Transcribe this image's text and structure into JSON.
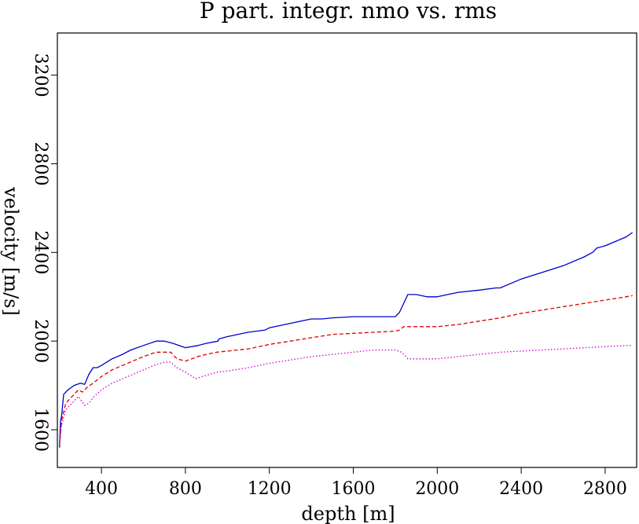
{
  "chart_data": {
    "type": "line",
    "title": "P part. integr. nmo vs. rms",
    "xlabel": "depth [m]",
    "ylabel": "velocity [m/s]",
    "xlim": [
      190,
      2950
    ],
    "ylim": [
      1430,
      3390
    ],
    "xticks": [
      400,
      800,
      1200,
      1600,
      2000,
      2400,
      2800
    ],
    "xtick_labels": [
      "400",
      "800",
      "1200",
      "1600",
      "2000",
      "2400",
      "2800"
    ],
    "yticks": [
      1600,
      2000,
      2400,
      2800,
      3200
    ],
    "ytick_labels": [
      "1600",
      "2000",
      "2400",
      "2800",
      "3200"
    ],
    "grid": false,
    "legend": "none",
    "series": [
      {
        "color": "#0000cc",
        "style": "solid",
        "x": [
          200,
          205,
          210,
          220,
          240,
          270,
          300,
          320,
          340,
          360,
          380,
          400,
          450,
          500,
          540,
          600,
          660,
          700,
          740,
          800,
          860,
          900,
          955,
          960,
          1000,
          1100,
          1180,
          1200,
          1300,
          1350,
          1400,
          1450,
          1500,
          1600,
          1700,
          1800,
          1820,
          1860,
          1900,
          1950,
          2000,
          2050,
          2100,
          2200,
          2280,
          2300,
          2400,
          2500,
          2600,
          2700,
          2740,
          2760,
          2800,
          2900,
          2930
        ],
        "y": [
          1520,
          1640,
          1660,
          1760,
          1780,
          1800,
          1810,
          1805,
          1850,
          1880,
          1880,
          1890,
          1920,
          1940,
          1960,
          1980,
          2000,
          2000,
          1990,
          1970,
          1980,
          1990,
          2000,
          2010,
          2020,
          2040,
          2050,
          2060,
          2080,
          2090,
          2100,
          2100,
          2105,
          2110,
          2110,
          2110,
          2130,
          2210,
          2210,
          2200,
          2200,
          2210,
          2220,
          2230,
          2240,
          2240,
          2280,
          2310,
          2340,
          2380,
          2400,
          2420,
          2430,
          2470,
          2490
        ]
      },
      {
        "color": "#dd0000",
        "style": "dashed",
        "x": [
          200,
          210,
          230,
          260,
          290,
          310,
          330,
          360,
          400,
          450,
          500,
          550,
          600,
          660,
          700,
          730,
          760,
          800,
          860,
          900,
          950,
          1000,
          1100,
          1200,
          1300,
          1400,
          1500,
          1600,
          1700,
          1800,
          1820,
          1840,
          1900,
          2000,
          2100,
          2200,
          2300,
          2400,
          2500,
          2600,
          2700,
          2800,
          2900,
          2930
        ],
        "y": [
          1530,
          1640,
          1720,
          1750,
          1780,
          1770,
          1790,
          1810,
          1840,
          1870,
          1890,
          1910,
          1930,
          1950,
          1950,
          1950,
          1920,
          1910,
          1930,
          1940,
          1950,
          1955,
          1965,
          1985,
          2000,
          2015,
          2030,
          2035,
          2040,
          2045,
          2050,
          2065,
          2065,
          2065,
          2075,
          2090,
          2105,
          2125,
          2140,
          2155,
          2170,
          2185,
          2200,
          2205
        ]
      },
      {
        "color": "#cc00cc",
        "style": "dotted",
        "x": [
          200,
          210,
          230,
          260,
          290,
          320,
          340,
          360,
          400,
          450,
          500,
          550,
          600,
          650,
          700,
          730,
          760,
          800,
          850,
          880,
          900,
          950,
          1000,
          1100,
          1200,
          1300,
          1400,
          1500,
          1600,
          1700,
          1800,
          1830,
          1860,
          1900,
          2000,
          2100,
          2200,
          2300,
          2400,
          2500,
          2600,
          2700,
          2800,
          2900,
          2930
        ],
        "y": [
          1540,
          1620,
          1690,
          1720,
          1750,
          1710,
          1720,
          1745,
          1780,
          1810,
          1830,
          1850,
          1870,
          1890,
          1905,
          1905,
          1880,
          1860,
          1830,
          1840,
          1845,
          1860,
          1865,
          1880,
          1900,
          1915,
          1930,
          1940,
          1950,
          1960,
          1960,
          1950,
          1920,
          1920,
          1920,
          1930,
          1940,
          1950,
          1955,
          1960,
          1965,
          1970,
          1975,
          1980,
          1980
        ]
      }
    ]
  }
}
